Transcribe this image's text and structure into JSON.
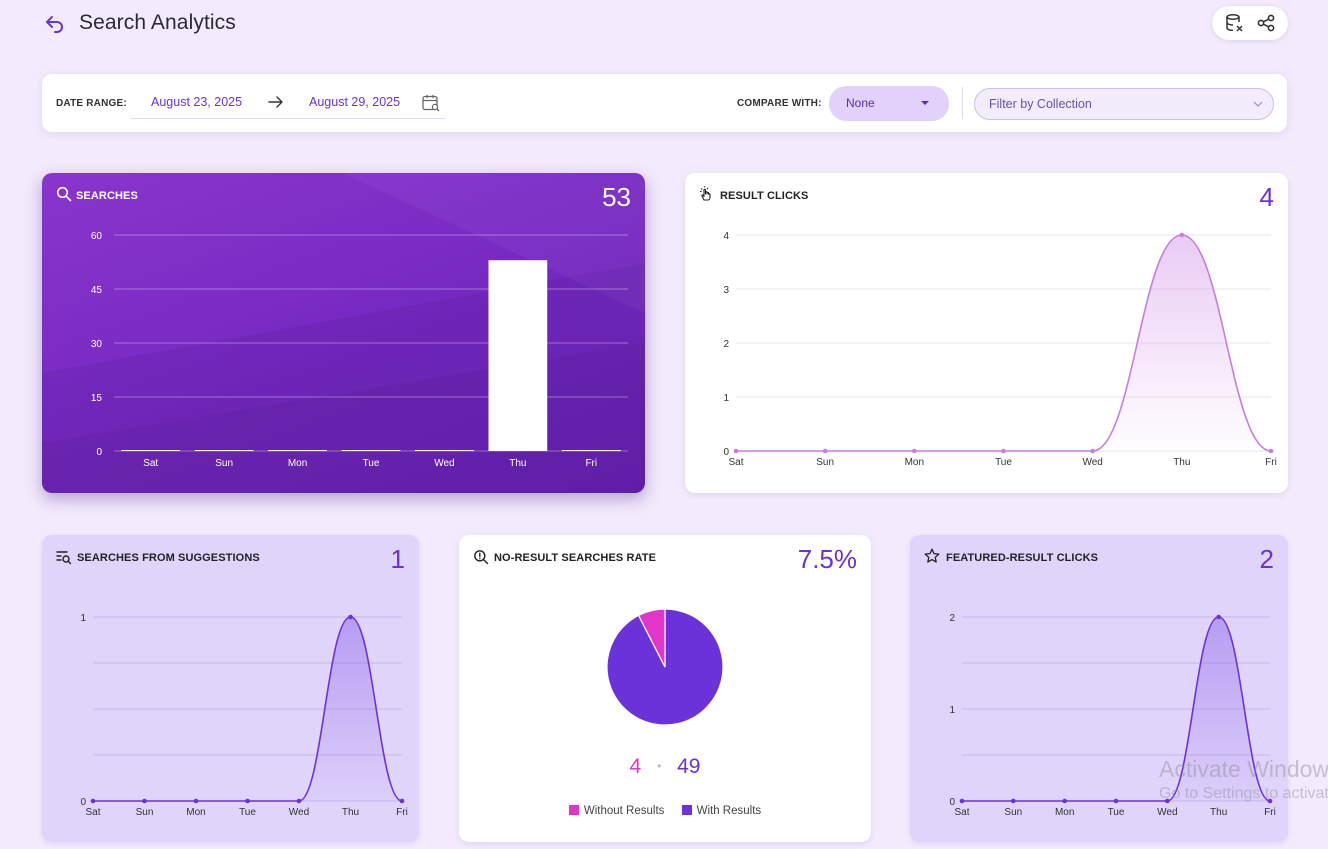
{
  "header": {
    "title": "Search Analytics",
    "back_icon": "back-arrow-icon",
    "actions": [
      "export-data-icon",
      "share-icon"
    ]
  },
  "filters": {
    "date_range_label": "DATE RANGE:",
    "start_date": "August 23, 2025",
    "end_date": "August 29, 2025",
    "compare_label": "COMPARE WITH:",
    "compare_value": "None",
    "collection_placeholder": "Filter by Collection"
  },
  "colors": {
    "accent": "#6a32d8",
    "purple_card": "#7428c0",
    "pink": "#e236c9",
    "line_light": "#c77ce0",
    "line_dark": "#6a32d8"
  },
  "cards": {
    "searches": {
      "title": "SEARCHES",
      "value": "53",
      "icon": "search-icon"
    },
    "result_clicks": {
      "title": "RESULT CLICKS",
      "value": "4",
      "icon": "pointer-click-icon"
    },
    "suggestions": {
      "title": "SEARCHES FROM SUGGESTIONS",
      "value": "1",
      "icon": "list-search-icon"
    },
    "no_result": {
      "title": "NO-RESULT SEARCHES RATE",
      "value": "7.5%",
      "icon": "zoom-info-icon",
      "without_count": "4",
      "separator": "•",
      "with_count": "49",
      "legend_without": "Without Results",
      "legend_with": "With Results"
    },
    "featured": {
      "title": "FEATURED-RESULT CLICKS",
      "value": "2",
      "icon": "star-icon"
    }
  },
  "chart_data": [
    {
      "type": "bar",
      "title": "SEARCHES",
      "categories": [
        "Sat",
        "Sun",
        "Mon",
        "Tue",
        "Wed",
        "Thu",
        "Fri"
      ],
      "values": [
        0,
        0,
        0,
        0,
        0,
        53,
        0
      ],
      "yticks": [
        0,
        15,
        30,
        45,
        60
      ],
      "ylim": [
        0,
        60
      ],
      "grid": true
    },
    {
      "type": "area",
      "title": "RESULT CLICKS",
      "categories": [
        "Sat",
        "Sun",
        "Mon",
        "Tue",
        "Wed",
        "Thu",
        "Fri"
      ],
      "values": [
        0,
        0,
        0,
        0,
        0,
        4,
        0
      ],
      "yticks": [
        0,
        1,
        2,
        3,
        4
      ],
      "ylim": [
        0,
        4
      ],
      "grid": true
    },
    {
      "type": "area",
      "title": "SEARCHES FROM SUGGESTIONS",
      "categories": [
        "Sat",
        "Sun",
        "Mon",
        "Tue",
        "Wed",
        "Thu",
        "Fri"
      ],
      "values": [
        0,
        0,
        0,
        0,
        0,
        1,
        0
      ],
      "yticks": [
        0,
        1
      ],
      "ylim": [
        0,
        1
      ],
      "grid": true
    },
    {
      "type": "pie",
      "title": "NO-RESULT SEARCHES RATE",
      "labels": [
        "Without Results",
        "With Results"
      ],
      "values": [
        4,
        49
      ],
      "legend": "bottom"
    },
    {
      "type": "area",
      "title": "FEATURED-RESULT CLICKS",
      "categories": [
        "Sat",
        "Sun",
        "Mon",
        "Tue",
        "Wed",
        "Thu",
        "Fri"
      ],
      "values": [
        0,
        0,
        0,
        0,
        0,
        2,
        0
      ],
      "yticks": [
        0,
        1,
        2
      ],
      "ylim": [
        0,
        2
      ],
      "grid": true
    }
  ],
  "watermark": {
    "line1": "Activate Windows",
    "line2": "Go to Settings to activate Windows."
  }
}
